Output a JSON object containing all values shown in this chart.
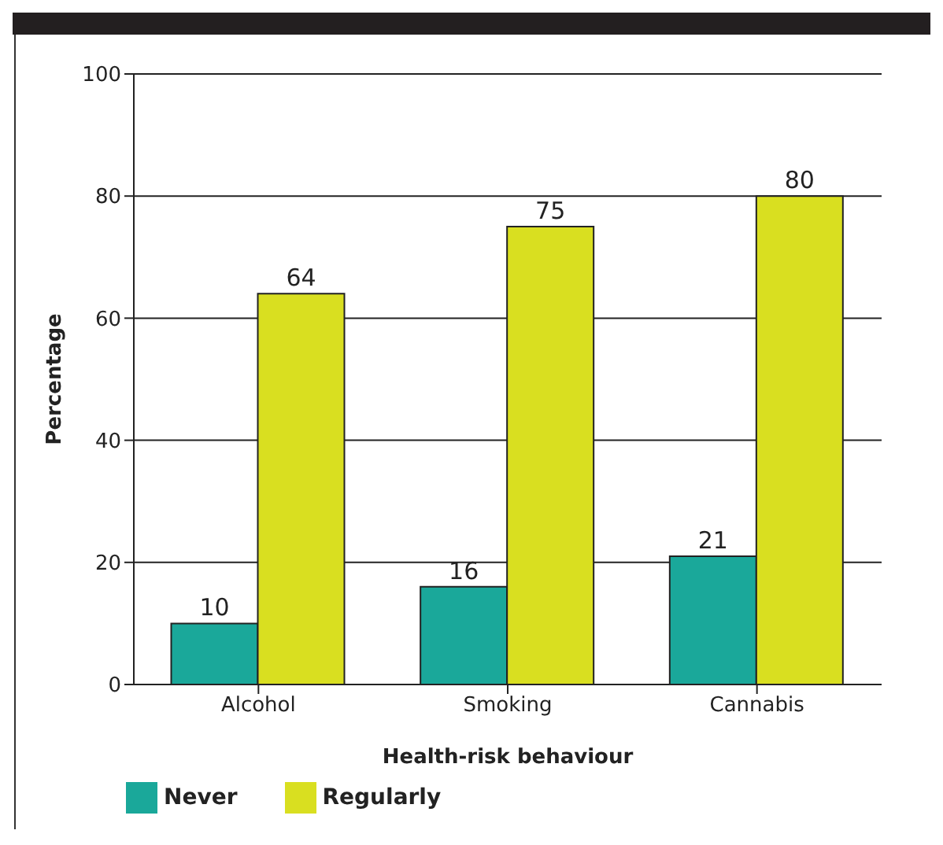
{
  "chart_data": {
    "type": "bar",
    "xlabel": "Health-risk behaviour",
    "ylabel": "Percentage",
    "categories": [
      "Alcohol",
      "Smoking",
      "Cannabis"
    ],
    "series": [
      {
        "name": "Never",
        "color": "#1aa89a",
        "values": [
          10,
          16,
          21
        ]
      },
      {
        "name": "Regularly",
        "color": "#d9df20",
        "values": [
          64,
          75,
          80
        ]
      }
    ],
    "ylim": [
      0,
      100
    ],
    "yticks": [
      0,
      20,
      40,
      60,
      80,
      100
    ],
    "grid": "y",
    "legend": "bottom left",
    "data_labels": true
  }
}
